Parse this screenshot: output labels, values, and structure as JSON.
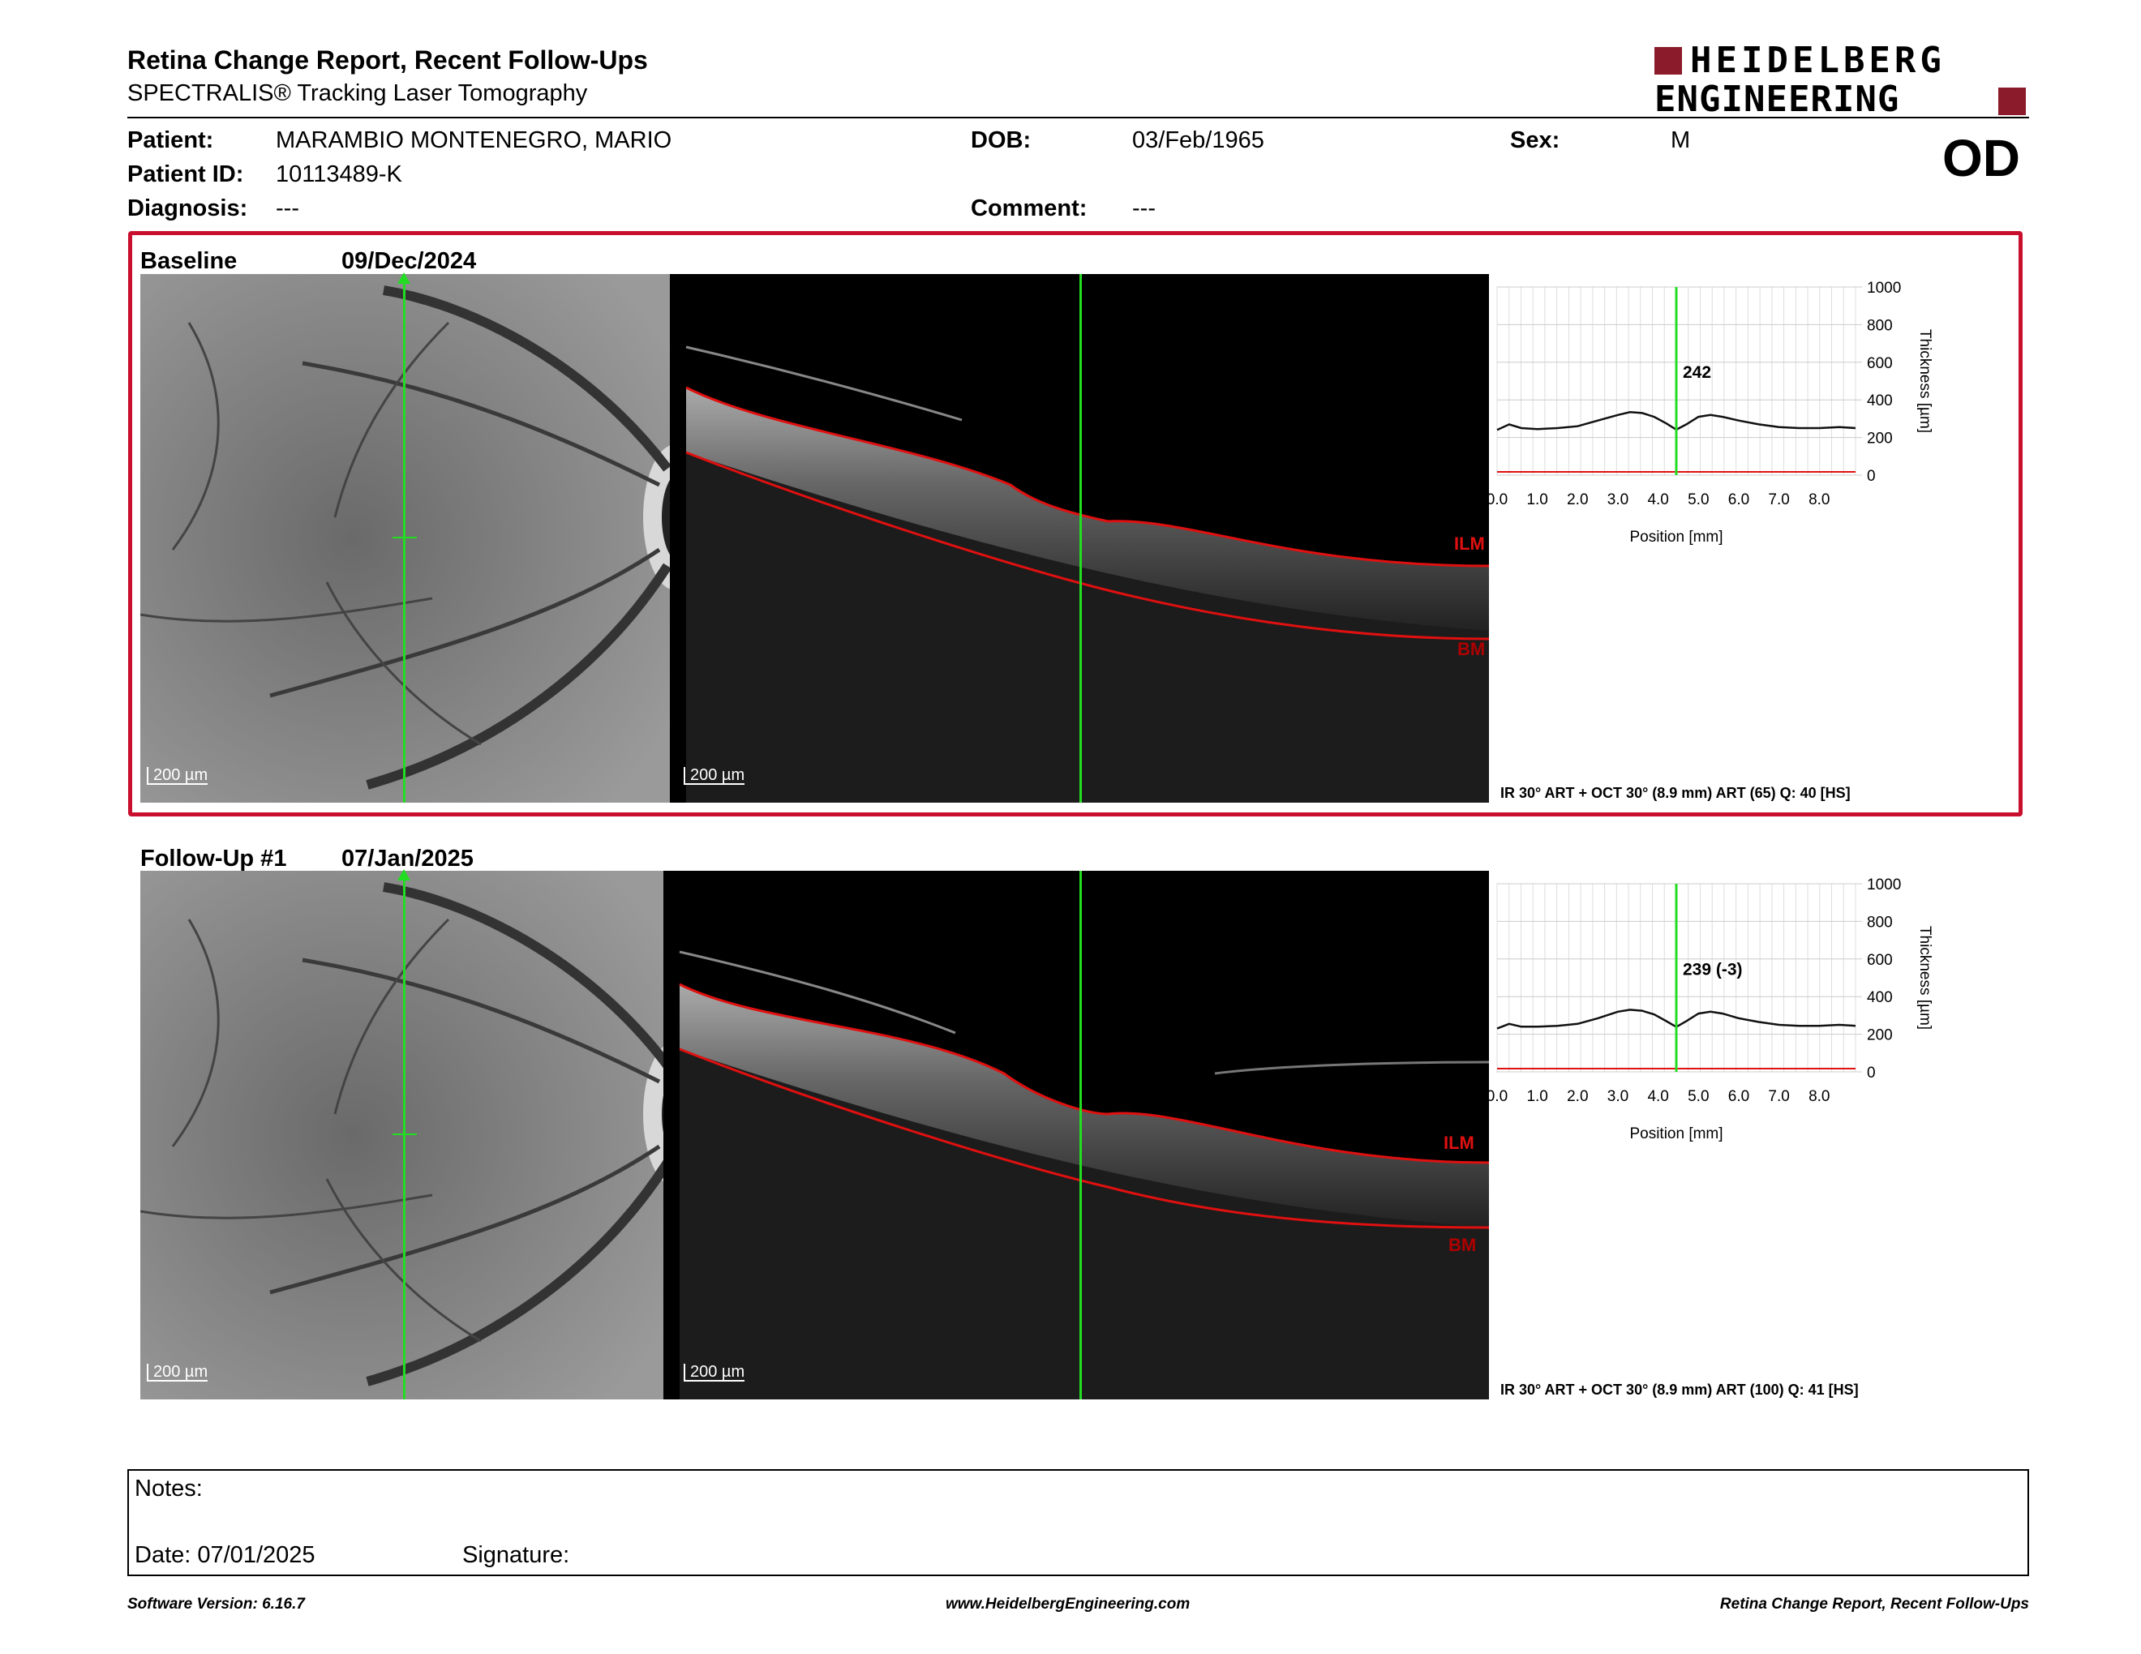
{
  "header": {
    "title": "Retina Change Report, Recent Follow-Ups",
    "subtitle": "SPECTRALIS® Tracking Laser Tomography",
    "logo_line1": "HEIDELBERG",
    "logo_line2": "ENGINEERING",
    "eye": "OD"
  },
  "patient": {
    "name_label": "Patient:",
    "name": "MARAMBIO MONTENEGRO, MARIO",
    "id_label": "Patient ID:",
    "id": "10113489-K",
    "diagnosis_label": "Diagnosis:",
    "diagnosis": "---",
    "dob_label": "DOB:",
    "dob": "03/Feb/1965",
    "comment_label": "Comment:",
    "comment": "---",
    "sex_label": "Sex:",
    "sex": "M"
  },
  "exams": [
    {
      "label": "Baseline",
      "date": "09/Dec/2024",
      "scale_fundus": "200 µm",
      "scale_oct": "200 µm",
      "ilm_label": "ILM",
      "bm_label": "BM",
      "thickness_value": "242",
      "scan_info": "IR 30° ART + OCT 30° (8.9 mm) ART (65) Q: 40 [HS]"
    },
    {
      "label": "Follow-Up #1",
      "date": "07/Jan/2025",
      "scale_fundus": "200 µm",
      "scale_oct": "200 µm",
      "ilm_label": "ILM",
      "bm_label": "BM",
      "thickness_value": "239 (-3)",
      "scan_info": "IR 30° ART + OCT 30° (8.9 mm) ART (100) Q: 41 [HS]"
    }
  ],
  "chart_data": [
    {
      "type": "line",
      "xlabel": "Position [mm]",
      "ylabel": "Thickness [µm]",
      "x_ticks": [
        "0.0",
        "1.0",
        "2.0",
        "3.0",
        "4.0",
        "5.0",
        "6.0",
        "7.0",
        "8.0"
      ],
      "y_ticks": [
        "0",
        "200",
        "400",
        "600",
        "800",
        "1000"
      ],
      "xlim": [
        0,
        8.9
      ],
      "ylim": [
        0,
        1000
      ],
      "marker_x": 4.45,
      "marker_value": 242,
      "x": [
        0,
        0.3,
        0.6,
        1.0,
        1.5,
        2.0,
        2.5,
        3.0,
        3.3,
        3.6,
        3.9,
        4.2,
        4.45,
        4.7,
        5.0,
        5.3,
        5.6,
        6.0,
        6.5,
        7.0,
        7.5,
        8.0,
        8.5,
        8.9
      ],
      "y": [
        240,
        270,
        250,
        245,
        250,
        260,
        290,
        320,
        335,
        330,
        310,
        275,
        242,
        270,
        310,
        320,
        310,
        290,
        270,
        255,
        250,
        250,
        255,
        250
      ],
      "grid": true
    },
    {
      "type": "line",
      "xlabel": "Position [mm]",
      "ylabel": "Thickness [µm]",
      "x_ticks": [
        "0.0",
        "1.0",
        "2.0",
        "3.0",
        "4.0",
        "5.0",
        "6.0",
        "7.0",
        "8.0"
      ],
      "y_ticks": [
        "0",
        "200",
        "400",
        "600",
        "800",
        "1000"
      ],
      "xlim": [
        0,
        8.9
      ],
      "ylim": [
        0,
        1000
      ],
      "marker_x": 4.45,
      "marker_value": 239,
      "x": [
        0,
        0.3,
        0.6,
        1.0,
        1.5,
        2.0,
        2.5,
        3.0,
        3.3,
        3.6,
        3.9,
        4.2,
        4.45,
        4.7,
        5.0,
        5.3,
        5.6,
        6.0,
        6.5,
        7.0,
        7.5,
        8.0,
        8.5,
        8.9
      ],
      "y": [
        230,
        255,
        240,
        240,
        245,
        255,
        285,
        320,
        330,
        325,
        305,
        270,
        239,
        270,
        310,
        320,
        310,
        285,
        265,
        250,
        245,
        245,
        250,
        245
      ],
      "grid": true
    }
  ],
  "notes": {
    "notes_label": "Notes:",
    "date_label": "Date: 07/01/2025",
    "signature_label": "Signature:"
  },
  "footer": {
    "software": "Software Version: 6.16.7",
    "website": "www.HeidelbergEngineering.com",
    "report_name": "Retina Change Report, Recent Follow-Ups"
  },
  "colors": {
    "brand_red": "#8b1a2b",
    "frame_red": "#c8102e",
    "scan_line": "#22dd22",
    "segmentation": "#e01010"
  }
}
